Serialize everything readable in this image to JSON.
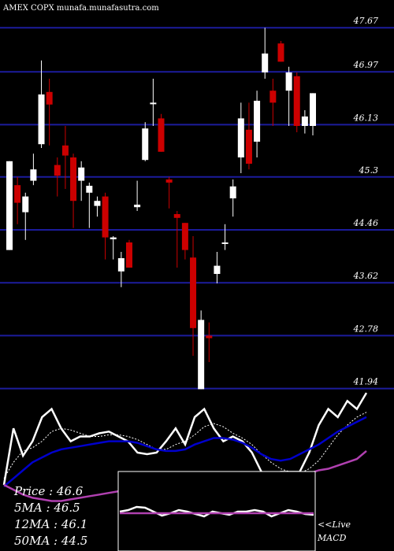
{
  "chart_data": [
    {
      "type": "candlestick",
      "title": "AMEX  COPX  munafa.munafasutra.com",
      "up_color": "#ffffff",
      "down_color": "#cc0000",
      "grid_color": "#1c1c9c",
      "grid": true,
      "ylim": [
        41.91,
        48.11
      ],
      "yticks": [
        47.67,
        46.97,
        46.13,
        45.3,
        44.46,
        43.62,
        42.78,
        41.94
      ],
      "open": [
        44.14,
        45.17,
        44.74,
        45.24,
        45.82,
        46.65,
        45.49,
        45.8,
        45.61,
        45.24,
        45.05,
        44.84,
        44.99,
        44.31,
        43.8,
        44.26,
        44.82,
        45.57,
        46.46,
        46.23,
        45.26,
        44.71,
        44.57,
        44.02,
        41.93,
        42.78,
        43.76,
        44.24,
        44.96,
        45.61,
        46.05,
        45.86,
        46.96,
        46.67,
        47.42,
        46.67,
        46.9,
        46.11,
        46.11
      ],
      "high": [
        45.55,
        45.3,
        45.05,
        45.67,
        47.15,
        46.86,
        45.61,
        46.11,
        45.67,
        45.55,
        45.21,
        44.99,
        45.05,
        44.36,
        44.11,
        44.3,
        45.24,
        46.17,
        46.86,
        46.3,
        45.3,
        44.76,
        44.57,
        44.36,
        43.18,
        42.99,
        44.11,
        44.55,
        45.26,
        46.48,
        46.48,
        46.67,
        47.67,
        46.86,
        47.46,
        47.05,
        46.96,
        46.36,
        46.63
      ],
      "low": [
        44.14,
        44.55,
        44.3,
        45.17,
        45.76,
        45.8,
        44.99,
        45.11,
        44.49,
        44.92,
        44.49,
        44.67,
        43.99,
        43.99,
        43.55,
        43.86,
        44.76,
        45.55,
        46.11,
        45.7,
        44.8,
        43.86,
        43.99,
        42.46,
        41.93,
        42.36,
        43.61,
        44.14,
        44.67,
        45.36,
        45.42,
        45.61,
        46.86,
        46.11,
        47.13,
        46.11,
        46.01,
        45.99,
        45.96
      ],
      "close": [
        45.55,
        44.89,
        44.99,
        45.42,
        46.61,
        46.45,
        45.32,
        45.64,
        44.92,
        45.45,
        45.16,
        44.92,
        44.34,
        44.34,
        44.01,
        43.86,
        44.86,
        46.07,
        46.48,
        45.7,
        45.21,
        44.65,
        44.14,
        42.9,
        43.03,
        42.74,
        43.89,
        44.26,
        45.15,
        46.23,
        45.51,
        46.51,
        47.26,
        46.48,
        47.13,
        46.96,
        46.11,
        46.26,
        46.63
      ]
    },
    {
      "type": "line",
      "ylim": [
        0,
        100
      ],
      "annotations": [
        "Price   : 46.6",
        "5MA   : 46.5",
        "12MA : 46.1",
        "50MA : 44.5"
      ],
      "series": [
        {
          "color": "#ffffff",
          "dashed": false,
          "values": [
            41,
            76,
            59,
            68,
            83,
            88,
            76,
            68,
            71,
            71,
            73,
            74,
            71,
            68,
            61,
            60,
            61,
            68,
            76,
            66,
            83,
            88,
            76,
            68,
            71,
            68,
            61,
            49,
            47,
            49,
            49,
            49,
            61,
            78,
            88,
            83,
            93,
            88,
            98
          ]
        },
        {
          "color": "#ffffff",
          "dashed": true,
          "values": [
            45,
            55,
            62,
            64,
            68,
            74,
            76,
            75,
            73,
            71,
            71,
            72,
            72,
            71,
            69,
            66,
            63,
            63,
            66,
            68,
            72,
            77,
            79,
            77,
            73,
            70,
            66,
            60,
            55,
            51,
            49,
            48,
            51,
            56,
            64,
            72,
            78,
            83,
            86
          ]
        },
        {
          "color": "#0000cc",
          "dashed": false,
          "values": [
            40,
            45,
            50,
            55,
            58,
            61,
            63,
            64,
            65,
            66,
            67,
            68,
            68,
            68,
            67,
            65,
            63,
            62,
            62,
            63,
            66,
            68,
            70,
            70,
            69,
            67,
            64,
            60,
            57,
            56,
            57,
            60,
            63,
            66,
            70,
            74,
            77,
            80,
            83
          ]
        },
        {
          "color": "#b040b0",
          "dashed": false,
          "values": [
            41,
            38,
            35,
            33,
            32,
            31,
            31,
            32,
            33,
            34,
            35,
            36,
            37,
            37,
            38,
            38,
            38,
            38,
            39,
            39,
            40,
            40,
            41,
            41,
            41,
            42,
            42,
            43,
            44,
            45,
            46,
            47,
            48,
            50,
            51,
            53,
            55,
            57,
            62
          ]
        }
      ]
    },
    {
      "type": "line",
      "ylim": [
        0,
        100
      ],
      "annotations": [
        "<<Live",
        "MACD"
      ],
      "series": [
        {
          "color": "#ffffff",
          "dashed": false,
          "values": [
            50,
            52,
            56,
            55,
            50,
            45,
            48,
            52,
            50,
            47,
            44,
            50,
            48,
            46,
            50,
            50,
            52,
            50,
            44,
            48,
            52,
            50,
            47,
            46
          ]
        },
        {
          "color": "#b040b0",
          "dashed": false,
          "values": [
            48,
            48,
            48,
            48,
            48,
            48,
            48,
            48,
            48,
            48,
            48,
            48,
            48,
            48,
            48,
            48,
            48,
            48,
            48,
            48,
            48,
            48,
            48,
            48
          ]
        }
      ]
    }
  ]
}
